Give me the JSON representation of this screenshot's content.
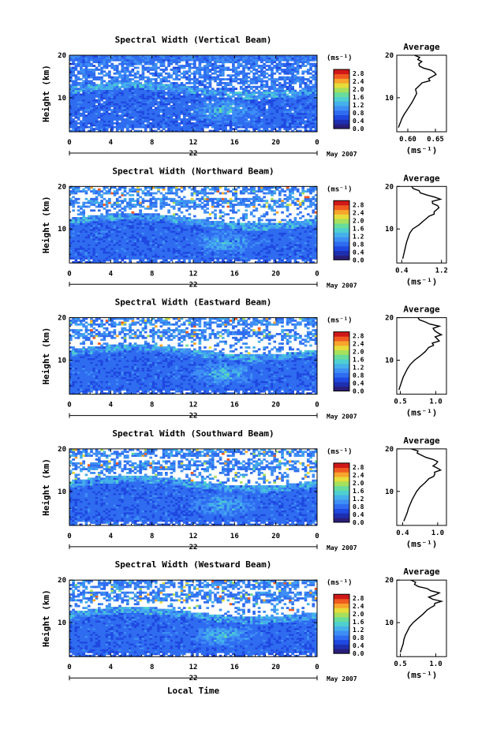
{
  "chart_data": [
    {
      "type": "heatmap",
      "beam": "vertical",
      "title": "Spectral Width (Vertical Beam)",
      "ylabel": "Height (km)",
      "x_ticks": [
        "0",
        "4",
        "8",
        "12",
        "16",
        "20",
        "0"
      ],
      "xlim": [
        0,
        24
      ],
      "y_ticks": [
        "10",
        "20"
      ],
      "ylim": [
        2,
        20
      ],
      "date_day": "22",
      "date_month": "May 2007",
      "colorbar": {
        "unit": "(ms⁻¹)",
        "ticks": [
          "0.0",
          "0.4",
          "0.8",
          "1.2",
          "1.6",
          "2.0",
          "2.4",
          "2.8"
        ],
        "range": [
          0,
          3.0
        ]
      },
      "average": {
        "title": "Average",
        "xlabel": "(ms⁻¹)",
        "x_ticks": [
          "0.60",
          "0.65"
        ],
        "xlim": [
          0.58,
          0.67
        ],
        "y_ticks": [
          "10",
          "20"
        ],
        "ylim": [
          2,
          20
        ],
        "profile": [
          [
            0.583,
            3
          ],
          [
            0.586,
            4
          ],
          [
            0.589,
            5
          ],
          [
            0.593,
            6
          ],
          [
            0.598,
            7
          ],
          [
            0.603,
            8
          ],
          [
            0.608,
            9
          ],
          [
            0.612,
            10
          ],
          [
            0.616,
            11
          ],
          [
            0.614,
            12
          ],
          [
            0.622,
            13
          ],
          [
            0.64,
            14
          ],
          [
            0.645,
            15
          ],
          [
            0.648,
            16
          ],
          [
            0.628,
            17
          ],
          [
            0.62,
            18
          ],
          [
            0.618,
            19
          ],
          [
            0.612,
            20
          ]
        ]
      }
    },
    {
      "type": "heatmap",
      "beam": "northward",
      "title": "Spectral Width (Northward Beam)",
      "ylabel": "Height (km)",
      "x_ticks": [
        "0",
        "4",
        "8",
        "12",
        "16",
        "20",
        "0"
      ],
      "xlim": [
        0,
        24
      ],
      "y_ticks": [
        "10",
        "20"
      ],
      "ylim": [
        2,
        20
      ],
      "date_day": "22",
      "date_month": "May 2007",
      "colorbar": {
        "unit": "(ms⁻¹)",
        "ticks": [
          "0.0",
          "0.4",
          "0.8",
          "1.2",
          "1.6",
          "2.0",
          "2.4",
          "2.8"
        ],
        "range": [
          0,
          3.0
        ]
      },
      "average": {
        "title": "Average",
        "xlabel": "(ms⁻¹)",
        "x_ticks": [
          "0.4",
          "1.2"
        ],
        "xlim": [
          0.3,
          1.3
        ],
        "y_ticks": [
          "10",
          "20"
        ],
        "ylim": [
          2,
          20
        ],
        "profile": [
          [
            0.42,
            3
          ],
          [
            0.44,
            4
          ],
          [
            0.46,
            5
          ],
          [
            0.48,
            6
          ],
          [
            0.5,
            7
          ],
          [
            0.53,
            8
          ],
          [
            0.56,
            9
          ],
          [
            0.62,
            10
          ],
          [
            0.75,
            11
          ],
          [
            0.85,
            12
          ],
          [
            0.95,
            13
          ],
          [
            1.05,
            14
          ],
          [
            1.15,
            15
          ],
          [
            1.02,
            16
          ],
          [
            1.18,
            17
          ],
          [
            0.9,
            18
          ],
          [
            0.75,
            19
          ],
          [
            0.6,
            20
          ]
        ]
      }
    },
    {
      "type": "heatmap",
      "beam": "eastward",
      "title": "Spectral Width (Eastward Beam)",
      "ylabel": "Height (km)",
      "x_ticks": [
        "0",
        "4",
        "8",
        "12",
        "16",
        "20",
        "0"
      ],
      "xlim": [
        0,
        24
      ],
      "y_ticks": [
        "10",
        "20"
      ],
      "ylim": [
        2,
        20
      ],
      "date_day": "22",
      "date_month": "May 2007",
      "colorbar": {
        "unit": "(ms⁻¹)",
        "ticks": [
          "0.0",
          "0.4",
          "0.8",
          "1.2",
          "1.6",
          "2.0",
          "2.4",
          "2.8"
        ],
        "range": [
          0,
          3.0
        ]
      },
      "average": {
        "title": "Average",
        "xlabel": "(ms⁻¹)",
        "x_ticks": [
          "0.5",
          "1.0"
        ],
        "xlim": [
          0.45,
          1.15
        ],
        "y_ticks": [
          "10",
          "20"
        ],
        "ylim": [
          2,
          20
        ],
        "profile": [
          [
            0.48,
            3
          ],
          [
            0.5,
            4
          ],
          [
            0.52,
            5
          ],
          [
            0.54,
            6
          ],
          [
            0.57,
            7
          ],
          [
            0.6,
            8
          ],
          [
            0.64,
            9
          ],
          [
            0.7,
            10
          ],
          [
            0.78,
            11
          ],
          [
            0.85,
            12
          ],
          [
            0.9,
            13
          ],
          [
            0.95,
            14
          ],
          [
            1.02,
            15
          ],
          [
            1.08,
            16
          ],
          [
            0.98,
            17
          ],
          [
            1.05,
            18
          ],
          [
            0.85,
            19
          ],
          [
            0.75,
            20
          ]
        ]
      }
    },
    {
      "type": "heatmap",
      "beam": "southward",
      "title": "Spectral Width (Southward Beam)",
      "ylabel": "Height (km)",
      "x_ticks": [
        "0",
        "4",
        "8",
        "12",
        "16",
        "20",
        "0"
      ],
      "xlim": [
        0,
        24
      ],
      "y_ticks": [
        "10",
        "20"
      ],
      "ylim": [
        2,
        20
      ],
      "date_day": "22",
      "date_month": "May 2007",
      "colorbar": {
        "unit": "(ms⁻¹)",
        "ticks": [
          "0.0",
          "0.4",
          "0.8",
          "1.2",
          "1.6",
          "2.0",
          "2.4",
          "2.8"
        ],
        "range": [
          0,
          3.0
        ]
      },
      "average": {
        "title": "Average",
        "xlabel": "(ms⁻¹)",
        "x_ticks": [
          "0.4",
          "1.0"
        ],
        "xlim": [
          0.3,
          1.15
        ],
        "y_ticks": [
          "10",
          "20"
        ],
        "ylim": [
          2,
          20
        ],
        "profile": [
          [
            0.42,
            3
          ],
          [
            0.45,
            4
          ],
          [
            0.48,
            5
          ],
          [
            0.5,
            6
          ],
          [
            0.53,
            7
          ],
          [
            0.56,
            8
          ],
          [
            0.6,
            9
          ],
          [
            0.64,
            10
          ],
          [
            0.7,
            11
          ],
          [
            0.78,
            12
          ],
          [
            0.85,
            13
          ],
          [
            0.95,
            14
          ],
          [
            1.05,
            15
          ],
          [
            0.92,
            16
          ],
          [
            1.0,
            17
          ],
          [
            0.8,
            18
          ],
          [
            0.65,
            19
          ],
          [
            0.55,
            20
          ]
        ]
      }
    },
    {
      "type": "heatmap",
      "beam": "westward",
      "title": "Spectral Width (Westward Beam)",
      "ylabel": "Height (km)",
      "x_ticks": [
        "0",
        "4",
        "8",
        "12",
        "16",
        "20",
        "0"
      ],
      "xlim": [
        0,
        24
      ],
      "y_ticks": [
        "10",
        "20"
      ],
      "ylim": [
        2,
        20
      ],
      "date_day": "22",
      "date_month": "May 2007",
      "xlabel": "Local Time",
      "colorbar": {
        "unit": "(ms⁻¹)",
        "ticks": [
          "0.0",
          "0.4",
          "0.8",
          "1.2",
          "1.6",
          "2.0",
          "2.4",
          "2.8"
        ],
        "range": [
          0,
          3.0
        ]
      },
      "average": {
        "title": "Average",
        "xlabel": "(ms⁻¹)",
        "x_ticks": [
          "0.5",
          "1.0"
        ],
        "xlim": [
          0.45,
          1.15
        ],
        "y_ticks": [
          "10",
          "20"
        ],
        "ylim": [
          2,
          20
        ],
        "profile": [
          [
            0.5,
            3
          ],
          [
            0.52,
            4
          ],
          [
            0.54,
            5
          ],
          [
            0.55,
            6
          ],
          [
            0.57,
            7
          ],
          [
            0.6,
            8
          ],
          [
            0.63,
            9
          ],
          [
            0.68,
            10
          ],
          [
            0.75,
            11
          ],
          [
            0.82,
            12
          ],
          [
            0.88,
            13
          ],
          [
            0.98,
            14
          ],
          [
            1.08,
            15
          ],
          [
            0.9,
            16
          ],
          [
            1.05,
            17
          ],
          [
            0.88,
            18
          ],
          [
            0.7,
            19
          ],
          [
            0.65,
            20
          ]
        ]
      }
    }
  ],
  "colors": {
    "colormap": [
      "#2a1e7a",
      "#1d2fb0",
      "#1f48e0",
      "#2f6cf0",
      "#3e8ef4",
      "#45b0ea",
      "#4fcfcf",
      "#68dc9a",
      "#a6e05c",
      "#e6dc3a",
      "#f7a52c",
      "#f05a20",
      "#d01818"
    ]
  }
}
